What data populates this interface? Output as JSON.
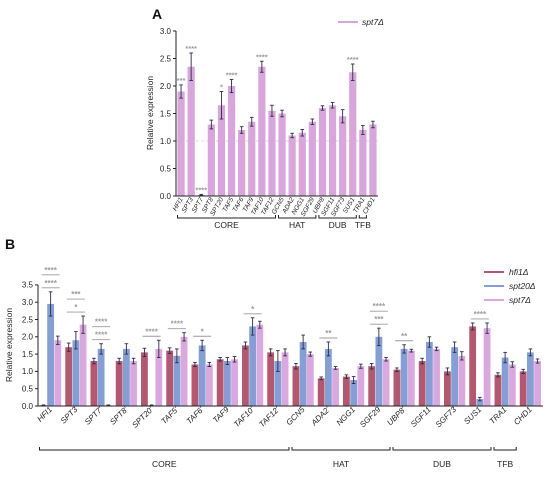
{
  "chart_data": [
    {
      "panel_label": "A",
      "type": "bar",
      "ylabel": "Relative expression",
      "ylim": [
        0,
        3.0
      ],
      "yticks": [
        0,
        0.5,
        1.0,
        1.5,
        2.0,
        2.5,
        3.0
      ],
      "ytick_labels": [
        "0.0",
        "0.5",
        "1.0",
        "1.5",
        "2.0",
        "2.5",
        "3.0"
      ],
      "reference_line": 1.0,
      "legend": "top-right",
      "categories": [
        "HFI1",
        "SPT3",
        "SPT7",
        "SPT8",
        "SPT20",
        "TAF5",
        "TAF6",
        "TAF9",
        "TAF10",
        "TAF12",
        "GCN5",
        "ADA2",
        "NGG1",
        "SGF29",
        "UBP8",
        "SGF11",
        "SGF73",
        "SUS1",
        "TRA1",
        "CHD1"
      ],
      "series": [
        {
          "name": "spt7Δ",
          "color": "#d8a5dc",
          "values": [
            1.9,
            2.35,
            0.02,
            1.3,
            1.65,
            2.0,
            1.2,
            1.35,
            2.35,
            1.55,
            1.5,
            1.1,
            1.15,
            1.35,
            1.6,
            1.65,
            1.45,
            2.25,
            1.2,
            1.3
          ],
          "errors": [
            0.12,
            0.25,
            0.01,
            0.08,
            0.25,
            0.12,
            0.06,
            0.08,
            0.1,
            0.1,
            0.06,
            0.04,
            0.06,
            0.05,
            0.04,
            0.05,
            0.12,
            0.15,
            0.08,
            0.06
          ]
        }
      ],
      "significance": [
        {
          "category": "HFI1",
          "marks": [
            "***"
          ]
        },
        {
          "category": "SPT3",
          "marks": [
            "****"
          ]
        },
        {
          "category": "SPT7",
          "marks": [
            "****"
          ]
        },
        {
          "category": "SPT20",
          "marks": [
            "*"
          ]
        },
        {
          "category": "TAF5",
          "marks": [
            "****"
          ]
        },
        {
          "category": "TAF10",
          "marks": [
            "****"
          ]
        },
        {
          "category": "SUS1",
          "marks": [
            "****"
          ]
        }
      ],
      "groups": [
        {
          "label": "CORE",
          "from": "HFI1",
          "to": "TAF12"
        },
        {
          "label": "HAT",
          "from": "GCN5",
          "to": "SGF29"
        },
        {
          "label": "DUB",
          "from": "UBP8",
          "to": "SUS1"
        },
        {
          "label": "TFB",
          "from": "TRA1",
          "to": "TRA1"
        }
      ]
    },
    {
      "panel_label": "B",
      "type": "bar",
      "ylabel": "Relative expression",
      "ylim": [
        0,
        3.5
      ],
      "yticks": [
        0,
        0.5,
        1.0,
        1.5,
        2.0,
        2.5,
        3.0,
        3.5
      ],
      "ytick_labels": [
        "0.0",
        "0.5",
        "1.0",
        "1.5",
        "2.0",
        "2.5",
        "3.0",
        "3.5"
      ],
      "legend": "top-right",
      "categories": [
        "HFI1",
        "SPT3",
        "SPT7'",
        "SPT8'",
        "SPT20'",
        "TAF5'",
        "TAF6'",
        "TAF9",
        "TAF10'",
        "TAF12'",
        "GCN5",
        "ADA2'",
        "NGG1",
        "SGF29",
        "UBP8'",
        "SGF11",
        "SGF73",
        "SUS1",
        "TRA1",
        "CHD1"
      ],
      "series": [
        {
          "name": "hfi1Δ",
          "color": "#b4576f",
          "values": [
            0.02,
            1.7,
            1.3,
            1.3,
            1.55,
            1.6,
            1.2,
            1.35,
            1.75,
            1.55,
            1.15,
            0.8,
            0.85,
            1.15,
            1.05,
            1.3,
            1.0,
            2.3,
            0.9,
            1.0
          ],
          "errors": [
            0.01,
            0.12,
            0.08,
            0.08,
            0.12,
            0.08,
            0.06,
            0.05,
            0.1,
            0.1,
            0.08,
            0.04,
            0.05,
            0.08,
            0.05,
            0.08,
            0.1,
            0.1,
            0.06,
            0.06
          ]
        },
        {
          "name": "spt20Δ",
          "color": "#839fd6",
          "values": [
            2.95,
            1.9,
            1.65,
            1.65,
            0.02,
            1.45,
            1.75,
            1.3,
            2.3,
            1.3,
            1.85,
            1.65,
            0.75,
            2.0,
            1.65,
            1.85,
            1.7,
            0.2,
            1.4,
            1.55
          ],
          "errors": [
            0.35,
            0.25,
            0.15,
            0.15,
            0.01,
            0.2,
            0.15,
            0.1,
            0.25,
            0.3,
            0.2,
            0.2,
            0.1,
            0.25,
            0.12,
            0.15,
            0.15,
            0.05,
            0.15,
            0.1
          ]
        },
        {
          "name": "spt7Δ",
          "color": "#dba7df",
          "values": [
            1.9,
            2.35,
            0.02,
            1.3,
            1.65,
            2.0,
            1.2,
            1.35,
            2.35,
            1.55,
            1.5,
            1.1,
            1.15,
            1.35,
            1.6,
            1.65,
            1.45,
            2.25,
            1.2,
            1.3
          ],
          "errors": [
            0.12,
            0.25,
            0.01,
            0.08,
            0.25,
            0.12,
            0.06,
            0.08,
            0.1,
            0.1,
            0.06,
            0.04,
            0.06,
            0.05,
            0.04,
            0.05,
            0.12,
            0.15,
            0.08,
            0.06
          ]
        }
      ],
      "significance": [
        {
          "category": "HFI1",
          "marks": [
            "****",
            "****"
          ]
        },
        {
          "category": "SPT3",
          "marks": [
            "*",
            "***"
          ]
        },
        {
          "category": "SPT7'",
          "marks": [
            "****",
            "****"
          ]
        },
        {
          "category": "SPT20'",
          "marks": [
            "****"
          ]
        },
        {
          "category": "TAF5'",
          "marks": [
            "****"
          ]
        },
        {
          "category": "TAF6'",
          "marks": [
            "*"
          ]
        },
        {
          "category": "TAF10'",
          "marks": [
            "*"
          ]
        },
        {
          "category": "ADA2'",
          "marks": [
            "**"
          ]
        },
        {
          "category": "SGF29",
          "marks": [
            "***",
            "****"
          ]
        },
        {
          "category": "UBP8'",
          "marks": [
            "**"
          ]
        },
        {
          "category": "SUS1",
          "marks": [
            "****"
          ]
        }
      ],
      "groups": [
        {
          "label": "CORE",
          "from": "HFI1",
          "to": "TAF12'"
        },
        {
          "label": "HAT",
          "from": "GCN5",
          "to": "SGF29"
        },
        {
          "label": "DUB",
          "from": "UBP8'",
          "to": "SUS1"
        },
        {
          "label": "TFB",
          "from": "TRA1",
          "to": "TRA1"
        }
      ]
    }
  ],
  "colors": {
    "error_bar": "#2d2a4a",
    "significance": "#9b9b9b",
    "axis": "#222222",
    "reference_line": "#cfcfcf"
  }
}
